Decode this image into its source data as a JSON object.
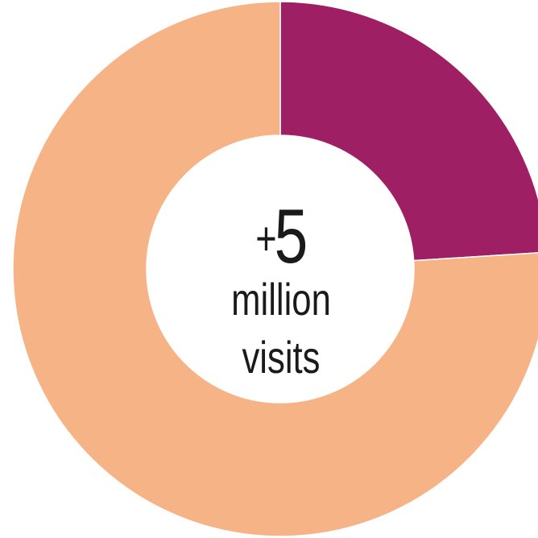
{
  "chart_data": {
    "type": "pie",
    "donut": true,
    "start_angle_deg": 0,
    "direction": "clockwise",
    "slices": [
      {
        "value": 24,
        "color": "#9E1F63"
      },
      {
        "value": 76,
        "color": "#F5B386"
      }
    ],
    "center_label": {
      "sign": "+",
      "number": "5",
      "line1": "million",
      "line2": "visits"
    },
    "legend": "none",
    "grid": false
  }
}
